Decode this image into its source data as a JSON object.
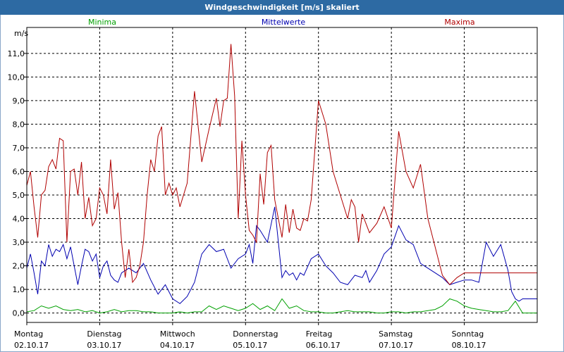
{
  "window": {
    "title": "Windgeschwindigkeit [m/s] skaliert"
  },
  "chart_data": {
    "type": "line",
    "title": "Windgeschwindigkeit [m/s] skaliert",
    "ylabel": "m/s",
    "xlabel": "",
    "ylim": [
      -0.4,
      12.1
    ],
    "xlim": [
      0,
      7.0
    ],
    "grid": true,
    "yticks": [
      "0,0",
      "1,0",
      "2,0",
      "3,0",
      "4,0",
      "5,0",
      "6,0",
      "7,0",
      "8,0",
      "9,0",
      "10,0",
      "11,0"
    ],
    "ytick_values": [
      0,
      1,
      2,
      3,
      4,
      5,
      6,
      7,
      8,
      9,
      10,
      11
    ],
    "xticks": [
      {
        "day": "Montag",
        "date": "02.10.17",
        "x": 0
      },
      {
        "day": "Dienstag",
        "date": "03.10.17",
        "x": 1
      },
      {
        "day": "Mittwoch",
        "date": "04.10.17",
        "x": 2
      },
      {
        "day": "Donnerstag",
        "date": "05.10.17",
        "x": 3
      },
      {
        "day": "Freitag",
        "date": "06.10.17",
        "x": 4
      },
      {
        "day": "Samstag",
        "date": "07.10.17",
        "x": 5
      },
      {
        "day": "Sonntag",
        "date": "08.10.17",
        "x": 6
      }
    ],
    "series": [
      {
        "name": "Minima",
        "color": "#00a000",
        "x": [
          0,
          0.1,
          0.2,
          0.3,
          0.4,
          0.5,
          0.6,
          0.7,
          0.8,
          0.9,
          1.0,
          1.1,
          1.2,
          1.3,
          1.4,
          1.5,
          1.6,
          1.7,
          1.8,
          1.9,
          2.0,
          2.1,
          2.2,
          2.3,
          2.4,
          2.5,
          2.6,
          2.7,
          2.8,
          2.9,
          3.0,
          3.1,
          3.2,
          3.3,
          3.4,
          3.5,
          3.6,
          3.7,
          3.8,
          3.9,
          4.0,
          4.1,
          4.2,
          4.3,
          4.4,
          4.5,
          4.6,
          4.7,
          4.8,
          4.9,
          5.0,
          5.1,
          5.2,
          5.3,
          5.4,
          5.5,
          5.6,
          5.7,
          5.8,
          5.9,
          6.0,
          6.1,
          6.2,
          6.3,
          6.4,
          6.5,
          6.6,
          6.7,
          6.8,
          6.9,
          7.0
        ],
        "values": [
          0.05,
          0.1,
          0.3,
          0.2,
          0.3,
          0.15,
          0.1,
          0.15,
          0.05,
          0.1,
          0.0,
          0.05,
          0.15,
          0.05,
          0.1,
          0.1,
          0.05,
          0.05,
          0.0,
          0.0,
          0.0,
          0.05,
          0.0,
          0.05,
          0.05,
          0.3,
          0.15,
          0.3,
          0.2,
          0.1,
          0.2,
          0.4,
          0.15,
          0.3,
          0.1,
          0.6,
          0.2,
          0.3,
          0.1,
          0.05,
          0.05,
          0.0,
          0.0,
          0.05,
          0.1,
          0.05,
          0.05,
          0.05,
          0.0,
          0.0,
          0.05,
          0.05,
          0.0,
          0.05,
          0.05,
          0.1,
          0.15,
          0.3,
          0.6,
          0.5,
          0.3,
          0.2,
          0.15,
          0.1,
          0.05,
          0.05,
          0.1,
          0.5,
          0.0,
          0.0,
          0.0
        ]
      },
      {
        "name": "Mittelwerte",
        "color": "#0000b0",
        "x": [
          0,
          0.05,
          0.1,
          0.15,
          0.2,
          0.25,
          0.3,
          0.35,
          0.4,
          0.45,
          0.5,
          0.55,
          0.6,
          0.65,
          0.7,
          0.75,
          0.8,
          0.85,
          0.9,
          0.95,
          1.0,
          1.05,
          1.1,
          1.15,
          1.2,
          1.25,
          1.3,
          1.4,
          1.5,
          1.6,
          1.7,
          1.8,
          1.9,
          2.0,
          2.1,
          2.2,
          2.3,
          2.4,
          2.5,
          2.6,
          2.7,
          2.8,
          2.9,
          3.0,
          3.05,
          3.1,
          3.15,
          3.2,
          3.3,
          3.4,
          3.5,
          3.55,
          3.6,
          3.65,
          3.7,
          3.75,
          3.8,
          3.9,
          4.0,
          4.1,
          4.2,
          4.3,
          4.4,
          4.5,
          4.6,
          4.65,
          4.7,
          4.8,
          4.9,
          5.0,
          5.1,
          5.2,
          5.3,
          5.4,
          5.5,
          5.6,
          5.7,
          5.8,
          5.9,
          6.0,
          6.1,
          6.2,
          6.3,
          6.4,
          6.5,
          6.6,
          6.65,
          6.7,
          6.75,
          6.8,
          6.85,
          6.9,
          6.95,
          7.0
        ],
        "values": [
          1.9,
          2.5,
          1.7,
          0.8,
          2.2,
          2.0,
          2.9,
          2.4,
          2.7,
          2.6,
          2.9,
          2.3,
          2.8,
          2.0,
          1.2,
          2.0,
          2.7,
          2.6,
          2.2,
          2.5,
          1.5,
          2.0,
          2.2,
          1.6,
          1.4,
          1.3,
          1.7,
          1.9,
          1.7,
          2.1,
          1.4,
          0.8,
          1.2,
          0.6,
          0.4,
          0.7,
          1.3,
          2.5,
          2.9,
          2.6,
          2.7,
          1.9,
          2.3,
          2.5,
          2.9,
          2.1,
          3.7,
          3.5,
          3.0,
          4.5,
          1.5,
          1.8,
          1.6,
          1.7,
          1.4,
          1.7,
          1.6,
          2.3,
          2.5,
          2.0,
          1.7,
          1.3,
          1.2,
          1.6,
          1.5,
          1.8,
          1.3,
          1.8,
          2.5,
          2.8,
          3.7,
          3.1,
          2.9,
          2.1,
          1.9,
          1.7,
          1.5,
          1.2,
          1.3,
          1.4,
          1.4,
          1.3,
          3.0,
          2.4,
          2.9,
          1.8,
          0.9,
          0.6,
          0.5,
          0.6,
          0.6,
          0.6,
          0.6,
          0.6
        ]
      },
      {
        "name": "Maxima",
        "color": "#b00000",
        "x": [
          0,
          0.05,
          0.1,
          0.15,
          0.2,
          0.25,
          0.3,
          0.35,
          0.4,
          0.45,
          0.5,
          0.55,
          0.6,
          0.65,
          0.7,
          0.75,
          0.8,
          0.85,
          0.9,
          0.95,
          1.0,
          1.05,
          1.1,
          1.15,
          1.2,
          1.25,
          1.3,
          1.35,
          1.4,
          1.45,
          1.5,
          1.55,
          1.6,
          1.65,
          1.7,
          1.75,
          1.8,
          1.85,
          1.9,
          1.95,
          2.0,
          2.05,
          2.1,
          2.2,
          2.3,
          2.4,
          2.5,
          2.6,
          2.65,
          2.7,
          2.75,
          2.8,
          2.85,
          2.9,
          2.95,
          3.0,
          3.05,
          3.1,
          3.15,
          3.2,
          3.25,
          3.3,
          3.35,
          3.4,
          3.45,
          3.5,
          3.55,
          3.6,
          3.65,
          3.7,
          3.75,
          3.8,
          3.85,
          3.9,
          4.0,
          4.1,
          4.2,
          4.3,
          4.4,
          4.45,
          4.5,
          4.55,
          4.6,
          4.7,
          4.8,
          4.9,
          5.0,
          5.1,
          5.2,
          5.3,
          5.4,
          5.5,
          5.6,
          5.7,
          5.8,
          5.9,
          6.0,
          6.05,
          6.1,
          6.15,
          6.2,
          6.25,
          6.3,
          6.4,
          6.5,
          6.6,
          6.65,
          6.7,
          6.75,
          6.8,
          6.85,
          6.9,
          6.95,
          7.0
        ],
        "values": [
          5.4,
          6.0,
          4.5,
          3.2,
          5.0,
          5.2,
          6.2,
          6.5,
          6.1,
          7.4,
          7.3,
          3.0,
          6.0,
          6.1,
          5.0,
          6.4,
          4.0,
          4.9,
          3.7,
          4.0,
          5.3,
          5.0,
          4.2,
          6.5,
          4.4,
          5.1,
          3.0,
          1.5,
          2.7,
          1.3,
          1.5,
          2.0,
          3.0,
          5.0,
          6.5,
          6.0,
          7.5,
          7.9,
          5.0,
          5.5,
          5.0,
          5.3,
          4.5,
          5.5,
          9.4,
          6.4,
          7.8,
          9.1,
          7.9,
          9.0,
          9.1,
          11.4,
          9.2,
          4.0,
          7.3,
          5.0,
          3.5,
          3.3,
          3.0,
          5.9,
          4.6,
          6.8,
          7.1,
          4.8,
          4.0,
          3.2,
          4.6,
          3.4,
          4.4,
          3.6,
          3.5,
          4.0,
          3.9,
          4.8,
          9.0,
          8.0,
          6.0,
          5.0,
          4.0,
          4.8,
          4.5,
          3.0,
          4.2,
          3.4,
          3.8,
          4.5,
          3.6,
          7.7,
          6.0,
          5.3,
          6.3,
          4.0,
          2.8,
          1.6,
          1.2,
          1.5,
          1.7,
          1.7,
          1.7,
          1.7,
          1.7,
          1.7,
          1.7,
          1.7,
          1.7,
          1.7,
          1.7,
          1.7,
          1.7,
          1.7,
          1.7,
          1.7,
          1.7,
          1.7
        ]
      }
    ]
  }
}
